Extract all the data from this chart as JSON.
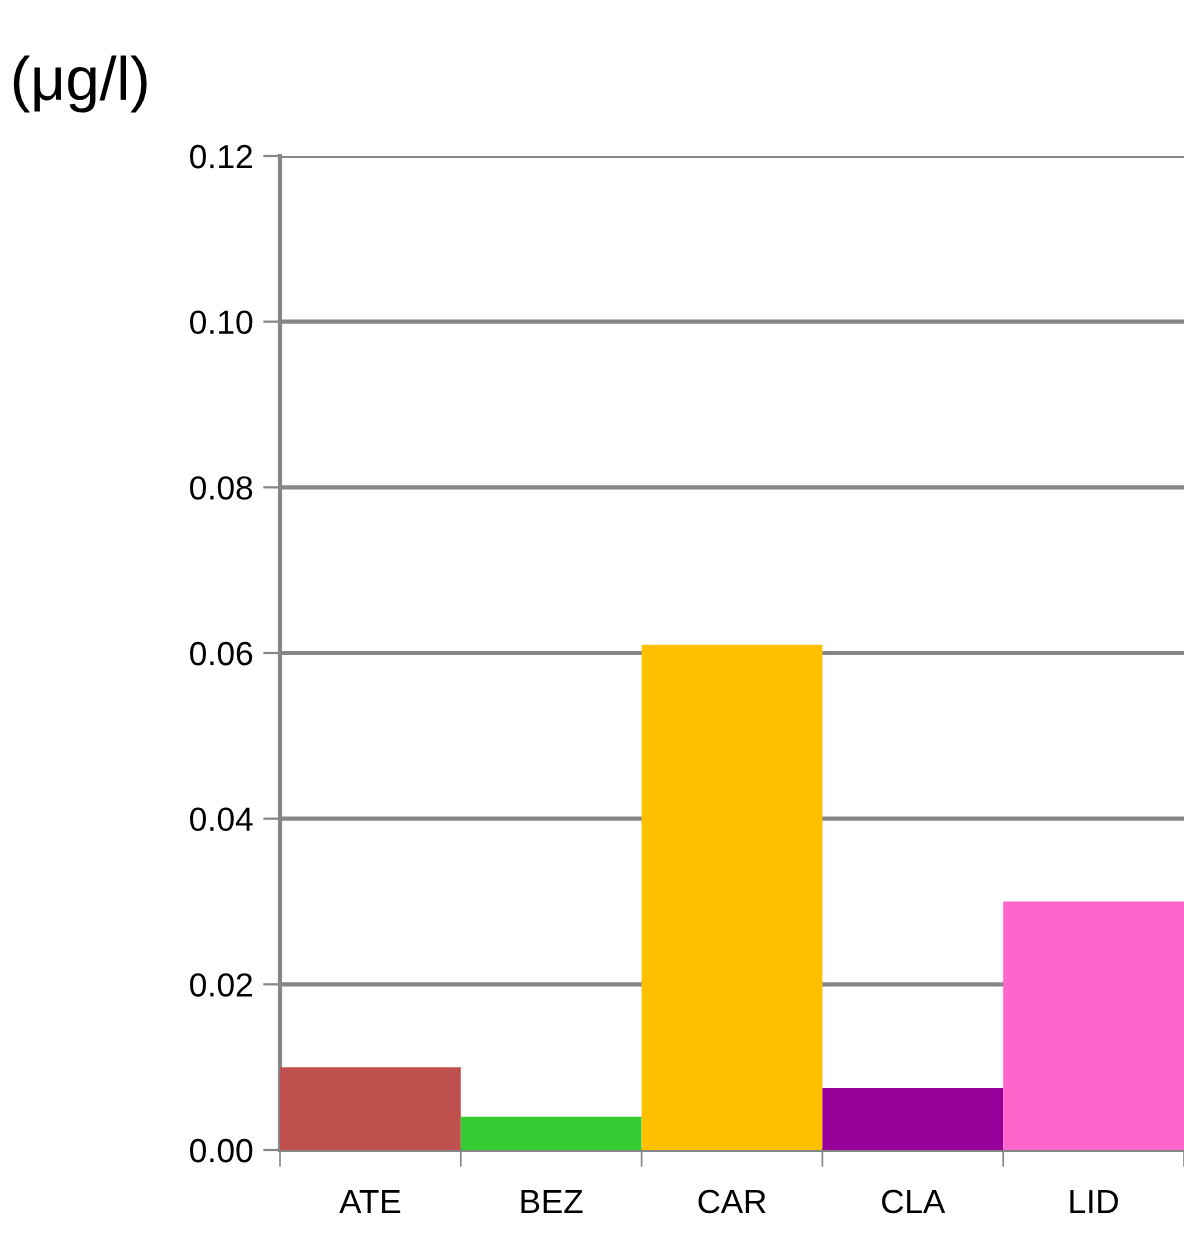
{
  "chart_data": {
    "type": "bar",
    "ylabel": "(μg/l)",
    "categories": [
      "ATE",
      "BEZ",
      "CAR",
      "CLA",
      "LID"
    ],
    "values": [
      0.01,
      0.004,
      0.061,
      0.0075,
      0.03
    ],
    "colors": [
      "#c0504d",
      "#33cc33",
      "#ffc000",
      "#990099",
      "#ff66cc"
    ],
    "ylim": [
      0,
      0.12
    ],
    "yticks": [
      {
        "value": 0,
        "label": "0.00"
      },
      {
        "value": 0.02,
        "label": "0.02"
      },
      {
        "value": 0.04,
        "label": "0.04"
      },
      {
        "value": 0.06,
        "label": "0.06"
      },
      {
        "value": 0.08,
        "label": "0.08"
      },
      {
        "value": 0.1,
        "label": "0.10"
      },
      {
        "value": 0.12,
        "label": "0.12"
      }
    ],
    "grid": "y"
  }
}
